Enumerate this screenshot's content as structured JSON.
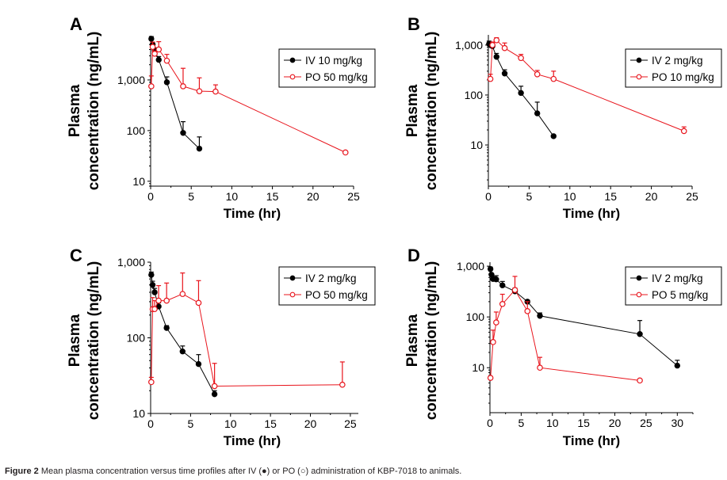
{
  "caption": {
    "label": "Figure 2",
    "text": "Mean plasma concentration versus time profiles after IV (●) or PO (○) administration of KBP-7018 to animals."
  },
  "colors": {
    "iv": "#000000",
    "po": "#e8141c"
  },
  "chart_data": [
    {
      "panel": "A",
      "type": "line",
      "yscale": "log",
      "xlabel": "Time (hr)",
      "ylabel": "Plasma concentration (ng/mL)",
      "xlim": [
        0,
        25
      ],
      "ylim": [
        8,
        7500
      ],
      "xticks": [
        0,
        5,
        10,
        15,
        20,
        25
      ],
      "yticks": [
        10,
        100,
        1000
      ],
      "ytick_labels": [
        "10",
        "100",
        "1,000"
      ],
      "legend_position": "top-right",
      "series": [
        {
          "name": "IV 10 mg/kg",
          "marker": "filled-circle",
          "x": [
            0.083,
            0.25,
            0.5,
            1,
            2,
            4,
            6
          ],
          "y": [
            6500,
            5000,
            3800,
            2500,
            900,
            90,
            44
          ],
          "err_upper": [
            7200,
            5600,
            4300,
            2900,
            1150,
            150,
            75
          ]
        },
        {
          "name": "PO 50 mg/kg",
          "marker": "open-circle",
          "x": [
            0.083,
            0.25,
            0.5,
            1,
            2,
            4,
            6,
            8,
            24
          ],
          "y": [
            750,
            4500,
            3300,
            4000,
            2400,
            750,
            600,
            590,
            37
          ],
          "err_upper": [
            1200,
            5600,
            3700,
            5700,
            3200,
            1700,
            1100,
            800,
            37
          ]
        }
      ]
    },
    {
      "panel": "B",
      "type": "line",
      "yscale": "log",
      "xlabel": "Time (hr)",
      "ylabel": "Plasma concentration (ng/mL)",
      "xlim": [
        0,
        25
      ],
      "ylim": [
        1.5,
        1600
      ],
      "xticks": [
        0,
        5,
        10,
        15,
        20,
        25
      ],
      "yticks": [
        10,
        100,
        1000
      ],
      "ytick_labels": [
        "10",
        "100",
        "1,000"
      ],
      "legend_position": "top-right",
      "series": [
        {
          "name": "IV 2 mg/kg",
          "marker": "filled-circle",
          "x": [
            0.083,
            0.25,
            0.5,
            1,
            2,
            4,
            6,
            8
          ],
          "y": [
            1050,
            1000,
            950,
            580,
            270,
            110,
            43,
            15
          ],
          "err_upper": [
            1200,
            1150,
            1050,
            680,
            320,
            150,
            72,
            15
          ]
        },
        {
          "name": "PO 10 mg/kg",
          "marker": "open-circle",
          "x": [
            0.25,
            0.5,
            1,
            2,
            4,
            6,
            8,
            24
          ],
          "y": [
            210,
            1000,
            1250,
            870,
            550,
            260,
            210,
            19
          ],
          "err_upper": [
            260,
            1150,
            1400,
            1100,
            650,
            310,
            300,
            23
          ]
        }
      ]
    },
    {
      "panel": "C",
      "type": "line",
      "yscale": "log",
      "xlabel": "Time (hr)",
      "ylabel": "Plasma concentration (ng/mL)",
      "xlim": [
        0,
        26
      ],
      "ylim": [
        10,
        1000
      ],
      "xticks": [
        0,
        5,
        10,
        15,
        20,
        25
      ],
      "yticks": [
        10,
        100,
        1000
      ],
      "ytick_labels": [
        "10",
        "100",
        "1,000"
      ],
      "legend_position": "top-right",
      "series": [
        {
          "name": "IV 2 mg/kg",
          "marker": "filled-circle",
          "x": [
            0.083,
            0.25,
            0.5,
            1,
            2,
            4,
            6,
            8
          ],
          "y": [
            680,
            500,
            400,
            260,
            135,
            66,
            45,
            18
          ],
          "err_upper": [
            740,
            560,
            450,
            290,
            145,
            78,
            60,
            20
          ]
        },
        {
          "name": "PO 50 mg/kg",
          "marker": "open-circle",
          "x": [
            0.083,
            0.25,
            0.5,
            1,
            2,
            4,
            6,
            8,
            24
          ],
          "y": [
            26,
            240,
            240,
            310,
            310,
            380,
            290,
            23,
            24
          ],
          "err_upper": [
            30,
            340,
            310,
            490,
            530,
            720,
            570,
            46,
            48
          ]
        }
      ]
    },
    {
      "panel": "D",
      "type": "line",
      "yscale": "log",
      "xlabel": "Time (hr)",
      "ylabel": "Plasma concentration (ng/mL)",
      "xlim": [
        0,
        32.5
      ],
      "ylim": [
        1.3,
        1200
      ],
      "xticks": [
        0,
        5,
        10,
        15,
        20,
        25,
        30
      ],
      "yticks": [
        10,
        100,
        1000
      ],
      "ytick_labels": [
        "10",
        "100",
        "1,000"
      ],
      "legend_position": "top-right",
      "series": [
        {
          "name": "IV 2 mg/kg",
          "marker": "filled-circle",
          "x": [
            0.083,
            0.25,
            0.5,
            1,
            2,
            4,
            6,
            8,
            24,
            30
          ],
          "y": [
            880,
            680,
            560,
            550,
            420,
            320,
            200,
            105,
            46,
            11
          ],
          "err_upper": [
            960,
            720,
            620,
            650,
            500,
            370,
            215,
            120,
            85,
            14
          ]
        },
        {
          "name": "PO 5 mg/kg",
          "marker": "open-circle",
          "x": [
            0.083,
            0.5,
            1,
            2,
            4,
            6,
            8,
            24
          ],
          "y": [
            6.3,
            32,
            78,
            180,
            340,
            130,
            10,
            5.6
          ],
          "err_upper": [
            6.3,
            55,
            125,
            280,
            630,
            200,
            16,
            5.6
          ]
        }
      ]
    }
  ]
}
